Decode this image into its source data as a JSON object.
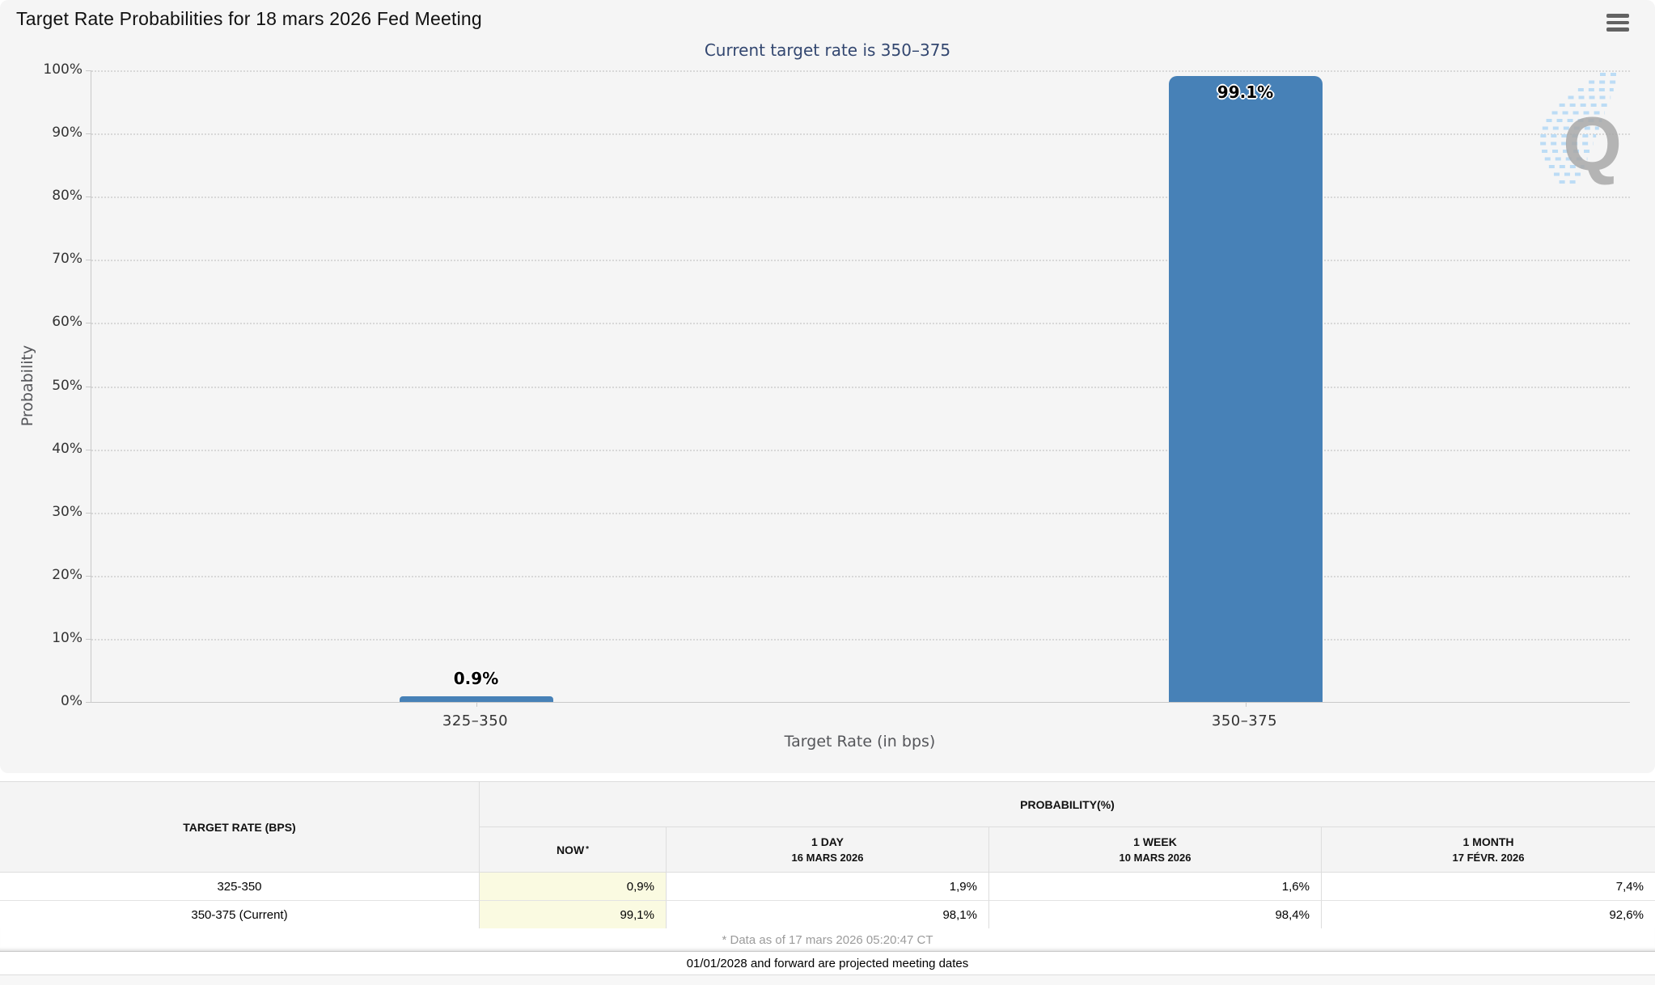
{
  "header": {
    "title": "Target Rate Probabilities for 18 mars 2026 Fed Meeting",
    "menu_icon": "hamburger-menu-icon"
  },
  "chart": {
    "title": "Target Rate Probabilities for 18 mars 2026 Fed Meeting",
    "subtitle": "Current target rate is 350–375",
    "y_axis_title": "Probability",
    "x_axis_title": "Target Rate (in bps)",
    "watermark_letter": "Q",
    "colors": {
      "bar": "#4781b7",
      "subtitle": "#334770",
      "now_column_highlight": "#fafae1"
    }
  },
  "chart_data": {
    "type": "bar",
    "title": "Target Rate Probabilities for 18 mars 2026 Fed Meeting",
    "subtitle": "Current target rate is 350–375",
    "categories": [
      "325–350",
      "350–375"
    ],
    "values": [
      0.9,
      99.1
    ],
    "data_labels": [
      "0.9%",
      "99.1%"
    ],
    "xlabel": "Target Rate (in bps)",
    "ylabel": "Probability",
    "ylim": [
      0,
      100
    ],
    "ytick_step": 10,
    "ytick_suffix": "%",
    "legend": "none",
    "grid": "dotted-horizontal",
    "bar_color": "#4781b7"
  },
  "table": {
    "col1_header": "TARGET RATE (BPS)",
    "group_header": "PROBABILITY(%)",
    "columns": [
      {
        "label": "NOW",
        "sup": "*",
        "date": ""
      },
      {
        "label": "1 DAY",
        "date": "16 MARS 2026"
      },
      {
        "label": "1 WEEK",
        "date": "10 MARS 2026"
      },
      {
        "label": "1 MONTH",
        "date": "17 FÉVR. 2026"
      }
    ],
    "rows": [
      {
        "rate": "325-350",
        "values": [
          "0,9%",
          "1,9%",
          "1,6%",
          "7,4%"
        ]
      },
      {
        "rate": "350-375 (Current)",
        "values": [
          "99,1%",
          "98,1%",
          "98,4%",
          "92,6%"
        ]
      }
    ],
    "footnote": "* Data as of 17 mars 2026 05:20:47 CT",
    "note": "01/01/2028 and forward are projected meeting dates"
  }
}
